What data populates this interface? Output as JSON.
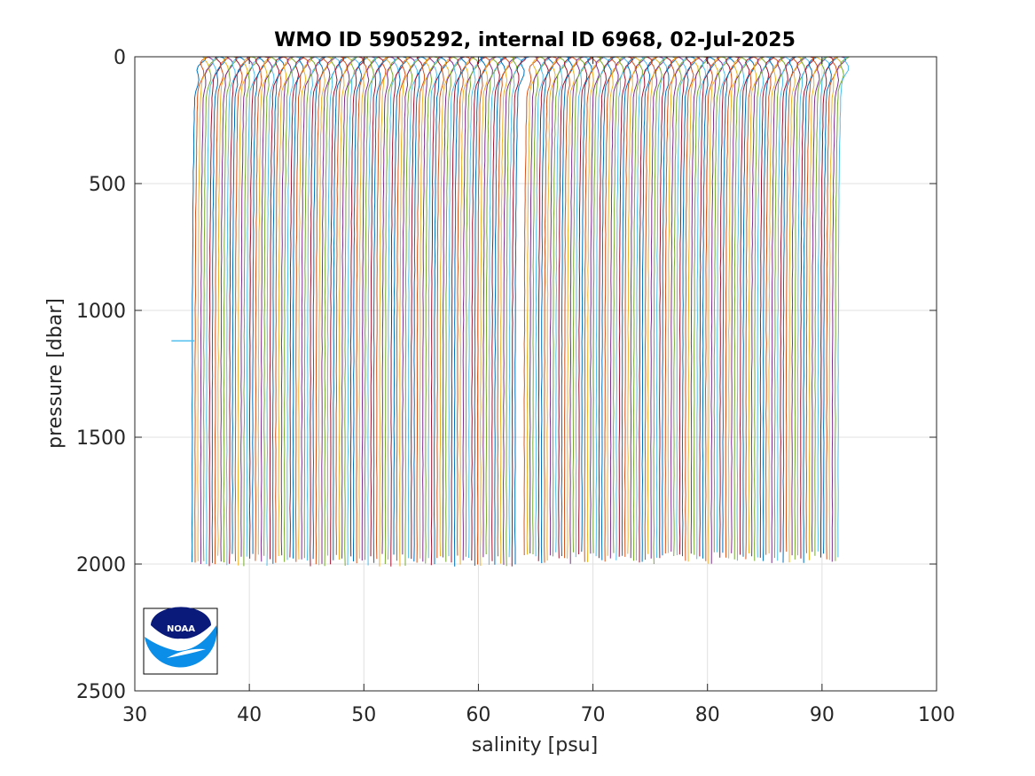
{
  "chart_data": {
    "type": "line",
    "title": "WMO ID 5905292, internal ID 6968, 02-Jul-2025",
    "xlabel": "salinity [psu]",
    "ylabel": "pressure [dbar]",
    "xlim": [
      30,
      100
    ],
    "ylim": [
      0,
      2500
    ],
    "y_reversed": true,
    "xticks": [
      30,
      40,
      50,
      60,
      70,
      80,
      90,
      100
    ],
    "yticks": [
      0,
      500,
      1000,
      1500,
      2000,
      2500
    ],
    "xtick_labels": [
      "30",
      "40",
      "50",
      "60",
      "70",
      "80",
      "90",
      "100"
    ],
    "ytick_labels": [
      "0",
      "500",
      "1000",
      "1500",
      "2000",
      "2500"
    ],
    "grid": true,
    "legend": "none",
    "series_description": "Stacked salinity profiles, each successive profile offset by ~0.25 psu; base salinity ~35 psu at depth, fresher near surface.",
    "profiles": {
      "first_group": {
        "start_offset": 35.0,
        "end_offset": 63.2,
        "count": 113,
        "max_pressure": 1960
      },
      "second_group": {
        "start_offset": 64.0,
        "end_offset": 91.4,
        "count": 110,
        "max_pressure": 1950
      },
      "surface_salinity_delta": 0.9,
      "thermocline_pressure": 150
    },
    "anomaly": {
      "x": [
        33.2,
        35.2
      ],
      "pressure": 1120
    }
  },
  "logo": {
    "text": "NOAA",
    "colors": {
      "navy": "#0a1a7a",
      "sky": "#0a8ee8"
    }
  },
  "colors": {
    "series": [
      "#0072BD",
      "#D95319",
      "#EDB120",
      "#7E2F8E",
      "#77AC30",
      "#4DBEEE",
      "#A2142F"
    ],
    "grid": "#e0e0e0",
    "axis": "#262626"
  }
}
